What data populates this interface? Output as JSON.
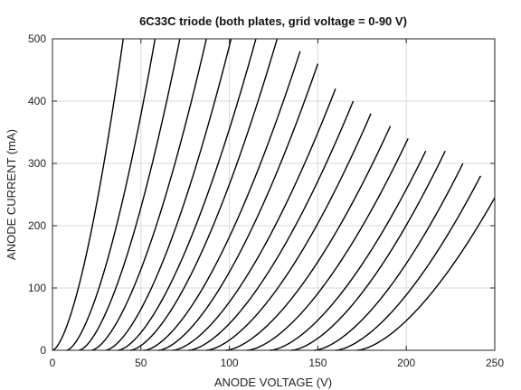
{
  "chart_data": {
    "type": "line",
    "title": "6C33C triode (both plates, grid voltage = 0-90 V)",
    "xlabel": "ANODE VOLTAGE (V)",
    "ylabel": "ANODE CURRENT (mA)",
    "xlim": [
      0,
      250
    ],
    "ylim": [
      0,
      500
    ],
    "xticks": [
      "0",
      "50",
      "100",
      "150",
      "200",
      "250"
    ],
    "yticks": [
      "0",
      "100",
      "200",
      "300",
      "400",
      "500"
    ],
    "grid": true,
    "legend": "none",
    "colors": {
      "curve": "#000000",
      "grid": "#d9d9d9",
      "axes": "#222222"
    },
    "curve_model": "I = k * (Va - Va0)^1.6",
    "series": [
      {
        "Va0": 0,
        "end_x": 40,
        "end_y": 500
      },
      {
        "Va0": 8,
        "end_x": 58,
        "end_y": 500
      },
      {
        "Va0": 15,
        "end_x": 72,
        "end_y": 500
      },
      {
        "Va0": 22,
        "end_x": 87,
        "end_y": 500
      },
      {
        "Va0": 30,
        "end_x": 101,
        "end_y": 500
      },
      {
        "Va0": 37,
        "end_x": 115,
        "end_y": 500
      },
      {
        "Va0": 44,
        "end_x": 127,
        "end_y": 500
      },
      {
        "Va0": 52,
        "end_x": 140,
        "end_y": 480
      },
      {
        "Va0": 60,
        "end_x": 150,
        "end_y": 460
      },
      {
        "Va0": 68,
        "end_x": 160,
        "end_y": 420
      },
      {
        "Va0": 77,
        "end_x": 170,
        "end_y": 400
      },
      {
        "Va0": 87,
        "end_x": 180,
        "end_y": 380
      },
      {
        "Va0": 98,
        "end_x": 191,
        "end_y": 360
      },
      {
        "Va0": 110,
        "end_x": 201,
        "end_y": 340
      },
      {
        "Va0": 123,
        "end_x": 211,
        "end_y": 320
      },
      {
        "Va0": 135,
        "end_x": 222,
        "end_y": 320
      },
      {
        "Va0": 148,
        "end_x": 232,
        "end_y": 300
      },
      {
        "Va0": 160,
        "end_x": 242,
        "end_y": 280
      },
      {
        "Va0": 172,
        "end_x": 250,
        "end_y": 245
      }
    ]
  }
}
